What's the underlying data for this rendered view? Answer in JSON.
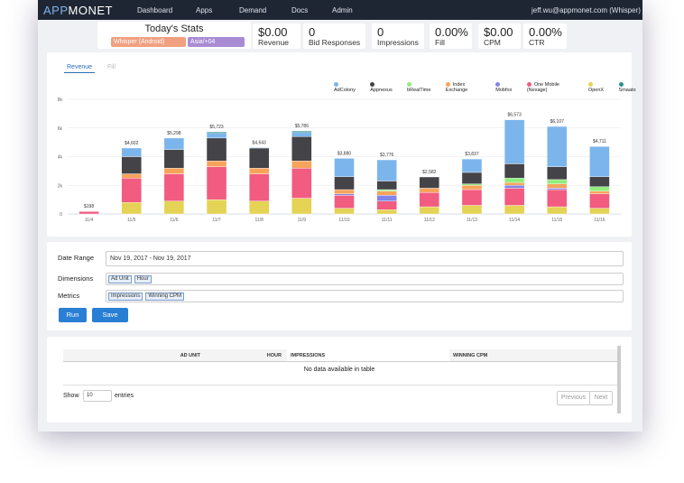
{
  "navbar": {
    "brand": [
      "APP",
      "MONET"
    ],
    "menu": [
      "Dashboard",
      "Apps",
      "Demand",
      "Docs",
      "Admin"
    ],
    "user": "jeff.wu@appmonet.com (Whisper)"
  },
  "stats": {
    "title": "Today's Stats",
    "filters": [
      "Whisper (Android)",
      "Asia/+04"
    ],
    "items": [
      {
        "value": "$0.00",
        "label": "Revenue"
      },
      {
        "value": "0",
        "label": "Bid Responses"
      },
      {
        "value": "0",
        "label": "Impressions"
      },
      {
        "value": "0.00%",
        "label": "Fill"
      },
      {
        "value": "$0.00",
        "label": "CPM"
      },
      {
        "value": "0.00%",
        "label": "CTR"
      }
    ]
  },
  "tabs": [
    "Revenue",
    "Fill"
  ],
  "chart_data": {
    "type": "bar",
    "stacked": true,
    "categories": [
      "11/4",
      "11/5",
      "11/6",
      "11/7",
      "11/8",
      "11/9",
      "11/10",
      "11/11",
      "11/12",
      "11/13",
      "11/14",
      "11/15",
      "11/16"
    ],
    "series": [
      {
        "name": "OpenX",
        "color": "#e4d354",
        "values": [
          0,
          800,
          900,
          1000,
          900,
          1100,
          400,
          300,
          500,
          600,
          600,
          500,
          400
        ]
      },
      {
        "name": "One Mobile (Nexage)",
        "color": "#f15c80",
        "values": [
          170,
          1700,
          1900,
          2300,
          1900,
          2100,
          900,
          600,
          1000,
          1100,
          1200,
          1200,
          1000
        ]
      },
      {
        "name": "Mobfox",
        "color": "#8085e9",
        "values": [
          0,
          0,
          0,
          0,
          0,
          0,
          100,
          400,
          0,
          0,
          200,
          100,
          0
        ]
      },
      {
        "name": "Index Exchange",
        "color": "#f7a35c",
        "values": [
          28,
          300,
          400,
          400,
          400,
          500,
          300,
          300,
          300,
          300,
          200,
          300,
          200
        ]
      },
      {
        "name": "bRealTime",
        "color": "#90ed7d",
        "values": [
          0,
          0,
          0,
          0,
          0,
          0,
          0,
          100,
          0,
          100,
          300,
          300,
          300
        ]
      },
      {
        "name": "Appnexus",
        "color": "#434348",
        "values": [
          0,
          1200,
          1300,
          1600,
          1400,
          1700,
          900,
          600,
          782,
          800,
          1000,
          900,
          700
        ]
      },
      {
        "name": "AdColony",
        "color": "#7cb5ec",
        "values": [
          0,
          602,
          798,
          323,
          43,
          286,
          1280,
          1476,
          0,
          937,
          3073,
          2807,
          2111
        ]
      },
      {
        "name": "Smaato",
        "color": "#2b908f",
        "values": [
          0,
          0,
          0,
          100,
          0,
          100,
          0,
          0,
          0,
          0,
          0,
          0,
          0
        ]
      }
    ],
    "legend_order": [
      6,
      5,
      4,
      3,
      2,
      1,
      0,
      7
    ],
    "totals": [
      "$198",
      "$4,602",
      "$5,298",
      "$5,723",
      "$4,643",
      "$5,786",
      "$3,880",
      "$3,776",
      "$2,582",
      "$3,837",
      "$6,573",
      "$6,107",
      "$4,711"
    ],
    "ylim": [
      0,
      8000
    ],
    "yticks": [
      0,
      {
        "value": 2000,
        "label": "2k"
      },
      {
        "value": 4000,
        "label": "4k"
      },
      {
        "value": 6000,
        "label": "6k"
      },
      {
        "value": 8000,
        "label": "8k"
      }
    ],
    "grid": true
  },
  "form": {
    "date_range": {
      "label": "Date Range",
      "value": "Nov 19, 2017 - Nov 19, 2017"
    },
    "dimensions": {
      "label": "Dimensions",
      "tags": [
        "Ad Unit",
        "Hour"
      ]
    },
    "metrics": {
      "label": "Metrics",
      "tags": [
        "Impressions",
        "Winning CPM"
      ]
    },
    "buttons": [
      "Run",
      "Save"
    ]
  },
  "table": {
    "columns": [
      "AD UNIT",
      "HOUR",
      "IMPRESSIONS",
      "WINNING CPM"
    ],
    "empty": "No data available in table",
    "show": "Show",
    "page_size": "10",
    "entries": "entries",
    "pagination": [
      "Previous",
      "Next"
    ]
  }
}
